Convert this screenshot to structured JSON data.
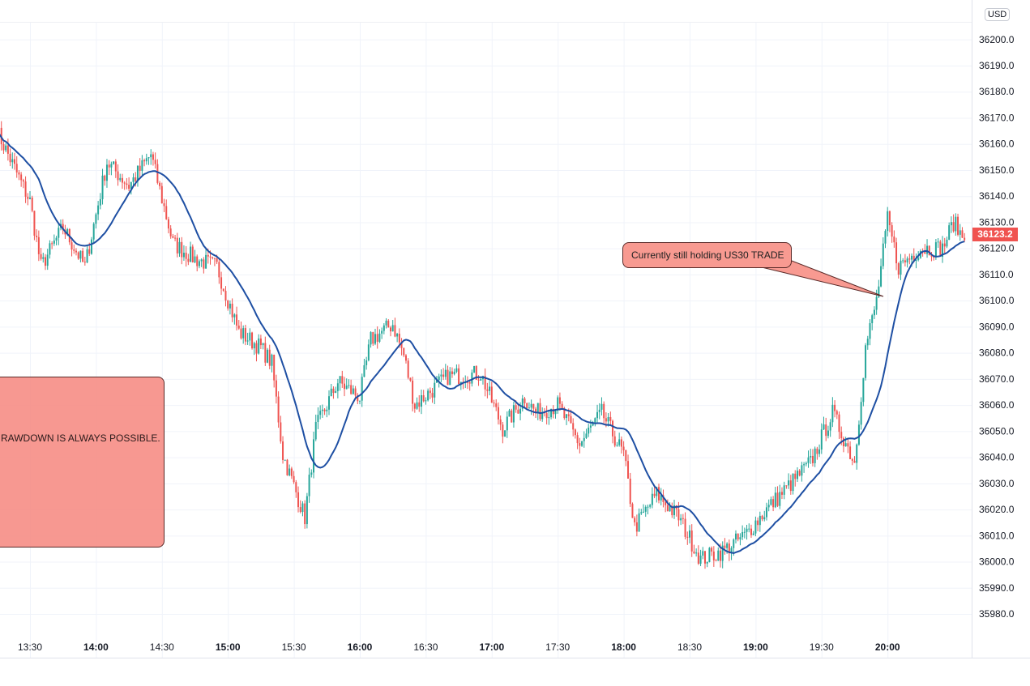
{
  "currency_badge": "USD",
  "last_price_label": "36123.2",
  "annotations": {
    "drawdown_note": "RAWDOWN IS ALWAYS POSSIBLE.",
    "callout": "Currently still holding US30 TRADE"
  },
  "colors": {
    "up": "#26a69a",
    "down": "#ef5350",
    "ma": "#1e4fa3",
    "note_fill": "#f6867e",
    "last_label": "#f05350"
  },
  "chart_data": {
    "type": "candlestick",
    "symbol": "US30",
    "interval_minutes": 1,
    "ylim": [
      35975,
      36202
    ],
    "y_ticks": [
      "36200.0",
      "36190.0",
      "36180.0",
      "36170.0",
      "36160.0",
      "36150.0",
      "36140.0",
      "36130.0",
      "36120.0",
      "36110.0",
      "36100.0",
      "36090.0",
      "36080.0",
      "36070.0",
      "36060.0",
      "36050.0",
      "36040.0",
      "36030.0",
      "36020.0",
      "36010.0",
      "36000.0",
      "35990.0",
      "35980.0"
    ],
    "x_ticks": [
      {
        "label": "13:30",
        "bold": false
      },
      {
        "label": "14:00",
        "bold": true
      },
      {
        "label": "14:30",
        "bold": false
      },
      {
        "label": "15:00",
        "bold": true
      },
      {
        "label": "15:30",
        "bold": false
      },
      {
        "label": "16:00",
        "bold": true
      },
      {
        "label": "16:30",
        "bold": false
      },
      {
        "label": "17:00",
        "bold": true
      },
      {
        "label": "17:30",
        "bold": false
      },
      {
        "label": "18:00",
        "bold": true
      },
      {
        "label": "18:30",
        "bold": false
      },
      {
        "label": "19:00",
        "bold": true
      },
      {
        "label": "19:30",
        "bold": false
      },
      {
        "label": "20:00",
        "bold": true
      }
    ],
    "approx_close_path": [
      [
        "13:15",
        36165
      ],
      [
        "13:30",
        36138
      ],
      [
        "13:35",
        36113
      ],
      [
        "13:45",
        36128
      ],
      [
        "13:55",
        36113
      ],
      [
        "14:05",
        36153
      ],
      [
        "14:15",
        36144
      ],
      [
        "14:25",
        36156
      ],
      [
        "14:35",
        36122
      ],
      [
        "14:45",
        36116
      ],
      [
        "14:55",
        36113
      ],
      [
        "15:05",
        36088
      ],
      [
        "15:15",
        36082
      ],
      [
        "15:20",
        36076
      ],
      [
        "15:25",
        36041
      ],
      [
        "15:35",
        36017
      ],
      [
        "15:40",
        36051
      ],
      [
        "15:50",
        36069
      ],
      [
        "16:00",
        36063
      ],
      [
        "16:05",
        36085
      ],
      [
        "16:15",
        36091
      ],
      [
        "16:20",
        36079
      ],
      [
        "16:25",
        36060
      ],
      [
        "16:40",
        36071
      ],
      [
        "16:55",
        36072
      ],
      [
        "17:05",
        36051
      ],
      [
        "17:15",
        36063
      ],
      [
        "17:20",
        36057
      ],
      [
        "17:30",
        36060
      ],
      [
        "17:40",
        36045
      ],
      [
        "17:50",
        36057
      ],
      [
        "18:00",
        36041
      ],
      [
        "18:05",
        36013
      ],
      [
        "18:15",
        36026
      ],
      [
        "18:25",
        36017
      ],
      [
        "18:35",
        36001
      ],
      [
        "18:45",
        36004
      ],
      [
        "18:55",
        36010
      ],
      [
        "19:05",
        36020
      ],
      [
        "19:15",
        36029
      ],
      [
        "19:25",
        36038
      ],
      [
        "19:35",
        36057
      ],
      [
        "19:45",
        36038
      ],
      [
        "19:50",
        36082
      ],
      [
        "19:55",
        36100
      ],
      [
        "20:00",
        36131
      ],
      [
        "20:05",
        36113
      ],
      [
        "20:15",
        36120
      ],
      [
        "20:25",
        36120
      ],
      [
        "20:30",
        36130
      ],
      [
        "20:35",
        36123.2
      ]
    ],
    "moving_average_period": 20,
    "last_price": 36123.2
  }
}
